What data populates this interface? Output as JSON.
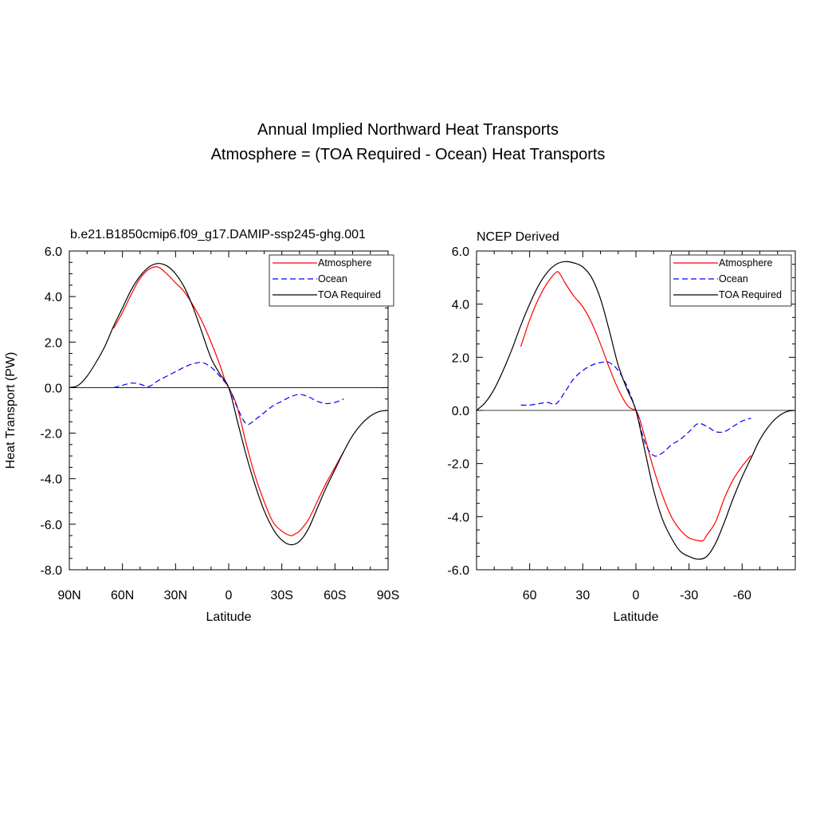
{
  "figure": {
    "title_line1": "Annual Implied Northward Heat Transports",
    "title_line2": "Atmosphere = (TOA Required - Ocean) Heat Transports"
  },
  "chart_data": [
    {
      "type": "line",
      "title": "b.e21.B1850cmip6.f09_g17.DAMIP-ssp245-ghg.001",
      "xlabel": "Latitude",
      "ylabel": "Heat Transport (PW)",
      "xlim": [
        90,
        -90
      ],
      "ylim": [
        -8,
        6
      ],
      "xticks": [
        90,
        60,
        30,
        0,
        -30,
        -60,
        -90
      ],
      "xtick_labels": [
        "90N",
        "60N",
        "30N",
        "0",
        "30S",
        "60S",
        "90S"
      ],
      "yticks": [
        6,
        4,
        2,
        0,
        -2,
        -4,
        -6,
        -8
      ],
      "ytick_labels": [
        "6.0",
        "4.0",
        "2.0",
        "0.0",
        "-2.0",
        "-4.0",
        "-6.0",
        "-8.0"
      ],
      "zero_line": true,
      "legend_position": "top-right",
      "series": [
        {
          "name": "Atmosphere",
          "color": "#ff0000",
          "dash": "solid",
          "x": [
            65,
            60,
            55,
            50,
            45,
            40,
            35,
            30,
            25,
            20,
            15,
            10,
            5,
            2,
            0,
            -2,
            -5,
            -10,
            -15,
            -20,
            -25,
            -30,
            -35,
            -38,
            -40,
            -45,
            -50,
            -55,
            -60,
            -65
          ],
          "y": [
            2.6,
            3.3,
            4.1,
            4.8,
            5.2,
            5.3,
            5.0,
            4.6,
            4.2,
            3.6,
            2.9,
            2.0,
            1.0,
            0.3,
            0.0,
            -0.3,
            -0.9,
            -2.5,
            -3.9,
            -5.0,
            -5.9,
            -6.3,
            -6.5,
            -6.4,
            -6.3,
            -5.8,
            -5.0,
            -4.2,
            -3.5,
            -2.8
          ]
        },
        {
          "name": "Ocean",
          "color": "#0000ff",
          "dash": "dashed",
          "x": [
            65,
            60,
            55,
            50,
            45,
            40,
            35,
            30,
            25,
            20,
            15,
            10,
            5,
            0,
            -5,
            -10,
            -15,
            -20,
            -25,
            -30,
            -35,
            -40,
            -45,
            -50,
            -55,
            -60,
            -65
          ],
          "y": [
            0.0,
            0.1,
            0.2,
            0.15,
            0.05,
            0.3,
            0.5,
            0.7,
            0.9,
            1.05,
            1.1,
            0.9,
            0.5,
            0.0,
            -0.9,
            -1.6,
            -1.4,
            -1.1,
            -0.8,
            -0.6,
            -0.4,
            -0.3,
            -0.4,
            -0.6,
            -0.7,
            -0.65,
            -0.5
          ]
        },
        {
          "name": "TOA Required",
          "color": "#000000",
          "dash": "solid",
          "x": [
            90,
            85,
            80,
            75,
            70,
            65,
            60,
            55,
            50,
            45,
            40,
            35,
            30,
            25,
            20,
            15,
            10,
            5,
            0,
            -5,
            -10,
            -15,
            -20,
            -25,
            -30,
            -35,
            -40,
            -45,
            -50,
            -55,
            -60,
            -65,
            -70,
            -75,
            -80,
            -85,
            -90
          ],
          "y": [
            0.0,
            0.1,
            0.5,
            1.1,
            1.8,
            2.7,
            3.5,
            4.3,
            4.9,
            5.3,
            5.45,
            5.35,
            5.0,
            4.4,
            3.5,
            2.4,
            1.3,
            0.6,
            0.0,
            -1.5,
            -3.0,
            -4.3,
            -5.4,
            -6.2,
            -6.7,
            -6.9,
            -6.75,
            -6.2,
            -5.3,
            -4.4,
            -3.6,
            -2.8,
            -2.1,
            -1.6,
            -1.25,
            -1.05,
            -1.0
          ]
        }
      ]
    },
    {
      "type": "line",
      "title": "NCEP Derived",
      "xlabel": "Latitude",
      "ylabel": "",
      "xlim": [
        90,
        -90
      ],
      "ylim": [
        -6,
        6
      ],
      "xticks": [
        60,
        30,
        0,
        -30,
        -60
      ],
      "xtick_labels": [
        "60",
        "30",
        "0",
        "-30",
        "-60"
      ],
      "yticks": [
        6,
        4,
        2,
        0,
        -2,
        -4,
        -6
      ],
      "ytick_labels": [
        "6.0",
        "4.0",
        "2.0",
        "0.0",
        "-2.0",
        "-4.0",
        "-6.0"
      ],
      "zero_line": true,
      "legend_position": "top-right",
      "series": [
        {
          "name": "Atmosphere",
          "color": "#ff0000",
          "dash": "solid",
          "x": [
            65,
            60,
            55,
            50,
            45,
            43,
            40,
            35,
            30,
            25,
            20,
            15,
            10,
            5,
            2,
            0,
            -2,
            -5,
            -10,
            -15,
            -20,
            -25,
            -30,
            -35,
            -38,
            -40,
            -45,
            -50,
            -55,
            -60,
            -65
          ],
          "y": [
            2.4,
            3.4,
            4.2,
            4.8,
            5.2,
            5.15,
            4.8,
            4.3,
            3.9,
            3.3,
            2.5,
            1.6,
            0.8,
            0.2,
            0.05,
            0.0,
            -0.3,
            -1.0,
            -2.2,
            -3.2,
            -4.0,
            -4.5,
            -4.8,
            -4.9,
            -4.9,
            -4.7,
            -4.2,
            -3.3,
            -2.6,
            -2.1,
            -1.7
          ]
        },
        {
          "name": "Ocean",
          "color": "#0000ff",
          "dash": "dashed",
          "x": [
            65,
            60,
            55,
            50,
            45,
            40,
            35,
            30,
            25,
            20,
            15,
            10,
            5,
            0,
            -5,
            -10,
            -15,
            -20,
            -25,
            -30,
            -35,
            -40,
            -45,
            -50,
            -55,
            -60,
            -65
          ],
          "y": [
            0.2,
            0.2,
            0.25,
            0.3,
            0.25,
            0.7,
            1.2,
            1.5,
            1.7,
            1.8,
            1.8,
            1.5,
            0.9,
            0.0,
            -1.2,
            -1.7,
            -1.6,
            -1.3,
            -1.1,
            -0.8,
            -0.5,
            -0.6,
            -0.8,
            -0.8,
            -0.6,
            -0.4,
            -0.3
          ]
        },
        {
          "name": "TOA Required",
          "color": "#000000",
          "dash": "solid",
          "x": [
            90,
            85,
            80,
            75,
            70,
            65,
            60,
            55,
            50,
            45,
            40,
            35,
            30,
            25,
            20,
            15,
            10,
            5,
            0,
            -5,
            -10,
            -15,
            -20,
            -25,
            -30,
            -35,
            -40,
            -45,
            -50,
            -55,
            -60,
            -65,
            -70,
            -75,
            -80,
            -85,
            -90
          ],
          "y": [
            0.0,
            0.3,
            0.8,
            1.5,
            2.3,
            3.2,
            4.0,
            4.7,
            5.2,
            5.5,
            5.6,
            5.55,
            5.4,
            5.0,
            4.2,
            3.0,
            1.7,
            0.8,
            0.0,
            -1.5,
            -3.0,
            -4.1,
            -4.8,
            -5.3,
            -5.5,
            -5.6,
            -5.5,
            -5.0,
            -4.2,
            -3.3,
            -2.5,
            -1.8,
            -1.1,
            -0.6,
            -0.25,
            -0.05,
            0.0
          ]
        }
      ]
    }
  ]
}
